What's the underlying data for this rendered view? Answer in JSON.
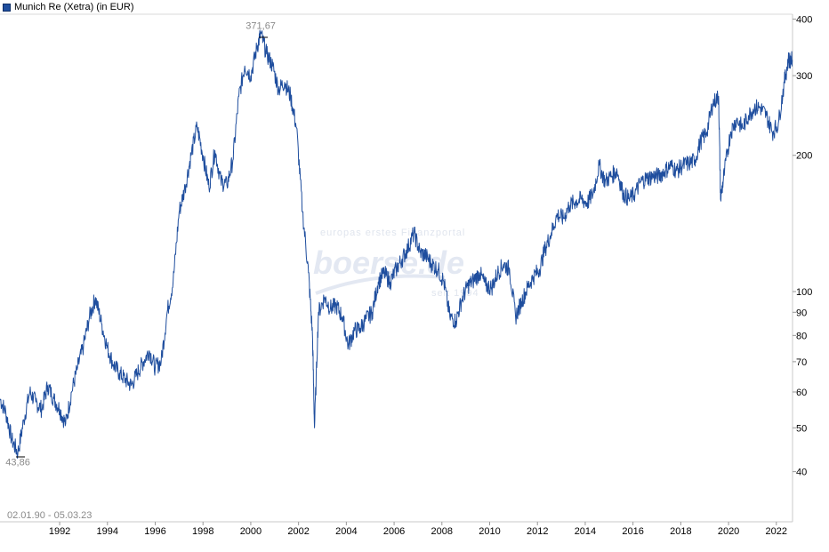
{
  "legend": {
    "label": "Munich Re (Xetra) (in EUR)",
    "color": "#1f4e9e"
  },
  "watermark": {
    "tagline": "europas erstes Finanzportal",
    "logo": "boerse.de",
    "sub": "seit 1994"
  },
  "chart_data": {
    "type": "line",
    "title": "",
    "xlabel": "",
    "ylabel": "",
    "y_scale": "log",
    "ylim": [
      31,
      410
    ],
    "xlim": [
      "1990-01-02",
      "2023-03-05"
    ],
    "grid": false,
    "legend_position": "top-left",
    "x_ticks": [
      "1992",
      "1994",
      "1996",
      "1998",
      "2000",
      "2002",
      "2004",
      "2006",
      "2008",
      "2010",
      "2012",
      "2014",
      "2016",
      "2018",
      "2020",
      "2022"
    ],
    "y_ticks": [
      40,
      50,
      60,
      70,
      80,
      90,
      100,
      200,
      300,
      400
    ],
    "y_tick_labels": [
      "40",
      "50",
      "60",
      "70",
      "80",
      "90",
      "100",
      "200",
      "300",
      "400"
    ],
    "annotations": {
      "max": {
        "value": 371.67,
        "label": "371,67",
        "date": "2000-12"
      },
      "min": {
        "value": 43.86,
        "label": "43,86",
        "date": "1990-10"
      },
      "range": "02.01.90 - 05.03.23"
    },
    "series": [
      {
        "name": "Munich Re (Xetra) (in EUR)",
        "color": "#1f4e9e",
        "points": [
          [
            "1990-01",
            58
          ],
          [
            "1990-04",
            54
          ],
          [
            "1990-07",
            47
          ],
          [
            "1990-10",
            44
          ],
          [
            "1991-01",
            52
          ],
          [
            "1991-04",
            60
          ],
          [
            "1991-07",
            57
          ],
          [
            "1991-10",
            55
          ],
          [
            "1992-01",
            62
          ],
          [
            "1992-04",
            58
          ],
          [
            "1992-07",
            55
          ],
          [
            "1992-10",
            51
          ],
          [
            "1993-01",
            60
          ],
          [
            "1993-04",
            68
          ],
          [
            "1993-07",
            76
          ],
          [
            "1993-10",
            88
          ],
          [
            "1994-01",
            97
          ],
          [
            "1994-04",
            85
          ],
          [
            "1994-07",
            75
          ],
          [
            "1994-10",
            69
          ],
          [
            "1995-01",
            66
          ],
          [
            "1995-04",
            64
          ],
          [
            "1995-07",
            62
          ],
          [
            "1995-10",
            66
          ],
          [
            "1996-01",
            70
          ],
          [
            "1996-04",
            74
          ],
          [
            "1996-07",
            68
          ],
          [
            "1996-10",
            70
          ],
          [
            "1997-01",
            90
          ],
          [
            "1997-04",
            105
          ],
          [
            "1997-07",
            150
          ],
          [
            "1997-10",
            170
          ],
          [
            "1998-01",
            200
          ],
          [
            "1998-04",
            232
          ],
          [
            "1998-07",
            200
          ],
          [
            "1998-10",
            170
          ],
          [
            "1999-01",
            205
          ],
          [
            "1999-04",
            175
          ],
          [
            "1999-07",
            172
          ],
          [
            "1999-10",
            195
          ],
          [
            "2000-01",
            270
          ],
          [
            "2000-04",
            315
          ],
          [
            "2000-07",
            300
          ],
          [
            "2000-10",
            345
          ],
          [
            "2000-12",
            371.67
          ],
          [
            "2001-03",
            335
          ],
          [
            "2001-06",
            315
          ],
          [
            "2001-09",
            280
          ],
          [
            "2001-12",
            290
          ],
          [
            "2002-03",
            270
          ],
          [
            "2002-06",
            230
          ],
          [
            "2002-09",
            150
          ],
          [
            "2002-12",
            110
          ],
          [
            "2003-02",
            80
          ],
          [
            "2003-03",
            50
          ],
          [
            "2003-05",
            90
          ],
          [
            "2003-08",
            97
          ],
          [
            "2003-11",
            92
          ],
          [
            "2004-02",
            93
          ],
          [
            "2004-05",
            88
          ],
          [
            "2004-08",
            76
          ],
          [
            "2004-11",
            82
          ],
          [
            "2005-02",
            83
          ],
          [
            "2005-05",
            87
          ],
          [
            "2005-08",
            90
          ],
          [
            "2005-11",
            105
          ],
          [
            "2006-02",
            110
          ],
          [
            "2006-05",
            105
          ],
          [
            "2006-08",
            112
          ],
          [
            "2006-11",
            118
          ],
          [
            "2007-02",
            125
          ],
          [
            "2007-05",
            135
          ],
          [
            "2007-08",
            122
          ],
          [
            "2007-11",
            120
          ],
          [
            "2008-02",
            115
          ],
          [
            "2008-05",
            112
          ],
          [
            "2008-08",
            105
          ],
          [
            "2008-11",
            88
          ],
          [
            "2009-02",
            86
          ],
          [
            "2009-05",
            96
          ],
          [
            "2009-08",
            103
          ],
          [
            "2009-11",
            106
          ],
          [
            "2010-02",
            110
          ],
          [
            "2010-05",
            103
          ],
          [
            "2010-08",
            102
          ],
          [
            "2010-11",
            110
          ],
          [
            "2011-02",
            115
          ],
          [
            "2011-05",
            112
          ],
          [
            "2011-08",
            88
          ],
          [
            "2011-11",
            95
          ],
          [
            "2012-02",
            102
          ],
          [
            "2012-05",
            108
          ],
          [
            "2012-08",
            112
          ],
          [
            "2012-11",
            125
          ],
          [
            "2013-02",
            135
          ],
          [
            "2013-05",
            148
          ],
          [
            "2013-08",
            145
          ],
          [
            "2013-11",
            155
          ],
          [
            "2014-02",
            158
          ],
          [
            "2014-05",
            160
          ],
          [
            "2014-08",
            157
          ],
          [
            "2014-11",
            165
          ],
          [
            "2015-02",
            190
          ],
          [
            "2015-05",
            175
          ],
          [
            "2015-08",
            180
          ],
          [
            "2015-11",
            185
          ],
          [
            "2016-02",
            165
          ],
          [
            "2016-05",
            160
          ],
          [
            "2016-08",
            165
          ],
          [
            "2016-11",
            175
          ],
          [
            "2017-02",
            178
          ],
          [
            "2017-05",
            180
          ],
          [
            "2017-08",
            180
          ],
          [
            "2017-11",
            185
          ],
          [
            "2018-02",
            190
          ],
          [
            "2018-05",
            185
          ],
          [
            "2018-08",
            190
          ],
          [
            "2018-11",
            192
          ],
          [
            "2019-02",
            195
          ],
          [
            "2019-05",
            215
          ],
          [
            "2019-08",
            225
          ],
          [
            "2019-11",
            260
          ],
          [
            "2020-02",
            270
          ],
          [
            "2020-03",
            160
          ],
          [
            "2020-05",
            185
          ],
          [
            "2020-08",
            225
          ],
          [
            "2020-11",
            240
          ],
          [
            "2021-02",
            230
          ],
          [
            "2021-05",
            245
          ],
          [
            "2021-08",
            255
          ],
          [
            "2021-11",
            255
          ],
          [
            "2022-02",
            245
          ],
          [
            "2022-05",
            225
          ],
          [
            "2022-08",
            235
          ],
          [
            "2022-11",
            290
          ],
          [
            "2023-01",
            325
          ],
          [
            "2023-03",
            325
          ]
        ]
      }
    ]
  }
}
